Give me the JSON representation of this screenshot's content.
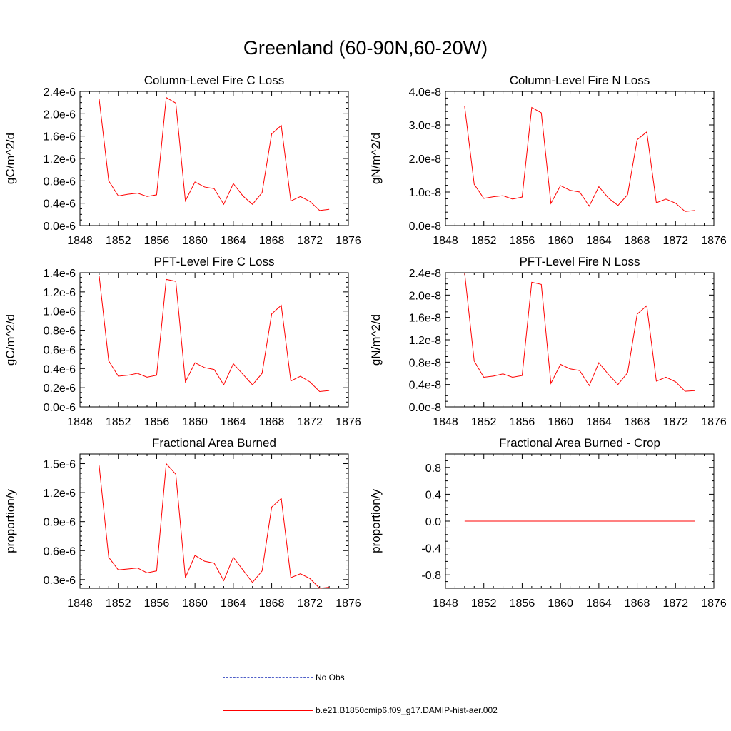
{
  "title": "Greenland (60-90N,60-20W)",
  "colors": {
    "model": "#ff0000",
    "obs": "#5060c8",
    "axis": "#000000"
  },
  "legend": {
    "obs_label": "No Obs",
    "model_label": "b.e21.B1850cmip6.f09_g17.DAMIP-hist-aer.002"
  },
  "chart_data": [
    {
      "type": "line",
      "title": "Column-Level Fire C Loss",
      "ylabel": "gC/m^2/d",
      "xlim": [
        1848,
        1876
      ],
      "x_ticks": [
        1848,
        1852,
        1856,
        1860,
        1864,
        1868,
        1872,
        1876
      ],
      "x_tick_labels": [
        "1848",
        "1852",
        "1856",
        "1860",
        "1864",
        "1868",
        "1872",
        "1876"
      ],
      "ylim": [
        0,
        2.4e-06
      ],
      "y_ticks": [
        0,
        4e-07,
        8e-07,
        1.2e-06,
        1.6e-06,
        2e-06,
        2.4e-06
      ],
      "y_tick_labels": [
        "0.0e-6",
        "0.4e-6",
        "0.8e-6",
        "1.2e-6",
        "1.6e-6",
        "2.0e-6",
        "2.4e-6"
      ],
      "y_minor_step": 1e-07,
      "x": [
        1850,
        1851,
        1852,
        1853,
        1854,
        1855,
        1856,
        1857,
        1858,
        1859,
        1860,
        1861,
        1862,
        1863,
        1864,
        1865,
        1866,
        1867,
        1868,
        1869,
        1870,
        1871,
        1872,
        1873,
        1874
      ],
      "series": [
        {
          "name": "b.e21.B1850cmip6.f09_g17.DAMIP-hist-aer.002",
          "values": [
            2.27e-06,
            8e-07,
            5.3e-07,
            5.6e-07,
            5.8e-07,
            5.2e-07,
            5.5e-07,
            2.29e-06,
            2.19e-06,
            4.4e-07,
            7.8e-07,
            6.9e-07,
            6.6e-07,
            3.8e-07,
            7.5e-07,
            5.3e-07,
            3.8e-07,
            5.9e-07,
            1.64e-06,
            1.79e-06,
            4.4e-07,
            5.2e-07,
            4.3e-07,
            2.7e-07,
            2.9e-07
          ]
        }
      ]
    },
    {
      "type": "line",
      "title": "Column-Level Fire N Loss",
      "ylabel": "gN/m^2/d",
      "xlim": [
        1848,
        1876
      ],
      "x_ticks": [
        1848,
        1852,
        1856,
        1860,
        1864,
        1868,
        1872,
        1876
      ],
      "x_tick_labels": [
        "1848",
        "1852",
        "1856",
        "1860",
        "1864",
        "1868",
        "1872",
        "1876"
      ],
      "ylim": [
        0,
        4e-08
      ],
      "y_ticks": [
        0,
        1e-08,
        2e-08,
        3e-08,
        4e-08
      ],
      "y_tick_labels": [
        "0.0e-8",
        "1.0e-8",
        "2.0e-8",
        "3.0e-8",
        "4.0e-8"
      ],
      "y_minor_step": 2e-09,
      "x": [
        1850,
        1851,
        1852,
        1853,
        1854,
        1855,
        1856,
        1857,
        1858,
        1859,
        1860,
        1861,
        1862,
        1863,
        1864,
        1865,
        1866,
        1867,
        1868,
        1869,
        1870,
        1871,
        1872,
        1873,
        1874
      ],
      "series": [
        {
          "name": "b.e21.B1850cmip6.f09_g17.DAMIP-hist-aer.002",
          "values": [
            3.56e-08,
            1.23e-08,
            8.1e-09,
            8.6e-09,
            8.9e-09,
            7.9e-09,
            8.5e-09,
            3.52e-08,
            3.36e-08,
            6.6e-09,
            1.19e-08,
            1.05e-08,
            1e-08,
            5.8e-09,
            1.16e-08,
            8.2e-09,
            6e-09,
            9.2e-09,
            2.56e-08,
            2.79e-08,
            6.8e-09,
            7.9e-09,
            6.7e-09,
            4.2e-09,
            4.5e-09
          ]
        }
      ]
    },
    {
      "type": "line",
      "title": "PFT-Level Fire C Loss",
      "ylabel": "gC/m^2/d",
      "xlim": [
        1848,
        1876
      ],
      "x_ticks": [
        1848,
        1852,
        1856,
        1860,
        1864,
        1868,
        1872,
        1876
      ],
      "x_tick_labels": [
        "1848",
        "1852",
        "1856",
        "1860",
        "1864",
        "1868",
        "1872",
        "1876"
      ],
      "ylim": [
        0,
        1.4e-06
      ],
      "y_ticks": [
        0,
        2e-07,
        4e-07,
        6e-07,
        8e-07,
        1e-06,
        1.2e-06,
        1.4e-06
      ],
      "y_tick_labels": [
        "0.0e-6",
        "0.2e-6",
        "0.4e-6",
        "0.6e-6",
        "0.8e-6",
        "1.0e-6",
        "1.2e-6",
        "1.4e-6"
      ],
      "y_minor_step": 5e-08,
      "x": [
        1850,
        1851,
        1852,
        1853,
        1854,
        1855,
        1856,
        1857,
        1858,
        1859,
        1860,
        1861,
        1862,
        1863,
        1864,
        1865,
        1866,
        1867,
        1868,
        1869,
        1870,
        1871,
        1872,
        1873,
        1874
      ],
      "series": [
        {
          "name": "b.e21.B1850cmip6.f09_g17.DAMIP-hist-aer.002",
          "values": [
            1.37e-06,
            4.8e-07,
            3.2e-07,
            3.3e-07,
            3.5e-07,
            3.1e-07,
            3.3e-07,
            1.33e-06,
            1.31e-06,
            2.6e-07,
            4.6e-07,
            4.1e-07,
            3.9e-07,
            2.3e-07,
            4.5e-07,
            3.4e-07,
            2.3e-07,
            3.5e-07,
            9.7e-07,
            1.06e-06,
            2.7e-07,
            3.2e-07,
            2.6e-07,
            1.6e-07,
            1.7e-07
          ]
        }
      ]
    },
    {
      "type": "line",
      "title": "PFT-Level Fire N Loss",
      "ylabel": "gN/m^2/d",
      "xlim": [
        1848,
        1876
      ],
      "x_ticks": [
        1848,
        1852,
        1856,
        1860,
        1864,
        1868,
        1872,
        1876
      ],
      "x_tick_labels": [
        "1848",
        "1852",
        "1856",
        "1860",
        "1864",
        "1868",
        "1872",
        "1876"
      ],
      "ylim": [
        0,
        2.4e-08
      ],
      "y_ticks": [
        0,
        4e-09,
        8e-09,
        1.2e-08,
        1.6e-08,
        2e-08,
        2.4e-08
      ],
      "y_tick_labels": [
        "0.0e-8",
        "0.4e-8",
        "0.8e-8",
        "1.2e-8",
        "1.6e-8",
        "2.0e-8",
        "2.4e-8"
      ],
      "y_minor_step": 1e-09,
      "x": [
        1850,
        1851,
        1852,
        1853,
        1854,
        1855,
        1856,
        1857,
        1858,
        1859,
        1860,
        1861,
        1862,
        1863,
        1864,
        1865,
        1866,
        1867,
        1868,
        1869,
        1870,
        1871,
        1872,
        1873,
        1874
      ],
      "series": [
        {
          "name": "b.e21.B1850cmip6.f09_g17.DAMIP-hist-aer.002",
          "values": [
            2.4e-08,
            8.2e-09,
            5.3e-09,
            5.5e-09,
            5.9e-09,
            5.3e-09,
            5.6e-09,
            2.23e-08,
            2.19e-08,
            4.2e-09,
            7.6e-09,
            6.8e-09,
            6.5e-09,
            3.8e-09,
            7.9e-09,
            5.8e-09,
            4e-09,
            6.1e-09,
            1.66e-08,
            1.81e-08,
            4.6e-09,
            5.3e-09,
            4.5e-09,
            2.8e-09,
            2.9e-09
          ]
        }
      ]
    },
    {
      "type": "line",
      "title": "Fractional Area Burned",
      "ylabel": "proportion/y",
      "xlim": [
        1848,
        1876
      ],
      "x_ticks": [
        1848,
        1852,
        1856,
        1860,
        1864,
        1868,
        1872,
        1876
      ],
      "x_tick_labels": [
        "1848",
        "1852",
        "1856",
        "1860",
        "1864",
        "1868",
        "1872",
        "1876"
      ],
      "ylim": [
        2.1e-07,
        1.6e-06
      ],
      "y_ticks": [
        3e-07,
        6e-07,
        9e-07,
        1.2e-06,
        1.5e-06
      ],
      "y_tick_labels": [
        "0.3e-6",
        "0.6e-6",
        "0.9e-6",
        "1.2e-6",
        "1.5e-6"
      ],
      "y_minor_step": 5e-08,
      "x": [
        1850,
        1851,
        1852,
        1853,
        1854,
        1855,
        1856,
        1857,
        1858,
        1859,
        1860,
        1861,
        1862,
        1863,
        1864,
        1865,
        1866,
        1867,
        1868,
        1869,
        1870,
        1871,
        1872,
        1873,
        1874
      ],
      "series": [
        {
          "name": "b.e21.B1850cmip6.f09_g17.DAMIP-hist-aer.002",
          "values": [
            1.48e-06,
            5.3e-07,
            4e-07,
            4.1e-07,
            4.2e-07,
            3.7e-07,
            3.9e-07,
            1.5e-06,
            1.39e-06,
            3.2e-07,
            5.5e-07,
            4.9e-07,
            4.7e-07,
            2.9e-07,
            5.3e-07,
            4e-07,
            2.7e-07,
            3.9e-07,
            1.05e-06,
            1.14e-06,
            3.2e-07,
            3.6e-07,
            3.1e-07,
            2.1e-07,
            2.2e-07
          ]
        }
      ]
    },
    {
      "type": "line",
      "title": "Fractional Area Burned - Crop",
      "ylabel": "proportion/y",
      "xlim": [
        1848,
        1876
      ],
      "x_ticks": [
        1848,
        1852,
        1856,
        1860,
        1864,
        1868,
        1872,
        1876
      ],
      "x_tick_labels": [
        "1848",
        "1852",
        "1856",
        "1860",
        "1864",
        "1868",
        "1872",
        "1876"
      ],
      "ylim": [
        -1.0,
        1.0
      ],
      "y_ticks": [
        -0.8,
        -0.4,
        0.0,
        0.4,
        0.8
      ],
      "y_tick_labels": [
        "-0.8",
        "-0.4",
        "0.0",
        "0.4",
        "0.8"
      ],
      "y_minor_step": 0.1,
      "x": [
        1850,
        1851,
        1852,
        1853,
        1854,
        1855,
        1856,
        1857,
        1858,
        1859,
        1860,
        1861,
        1862,
        1863,
        1864,
        1865,
        1866,
        1867,
        1868,
        1869,
        1870,
        1871,
        1872,
        1873,
        1874
      ],
      "series": [
        {
          "name": "b.e21.B1850cmip6.f09_g17.DAMIP-hist-aer.002",
          "values": [
            0,
            0,
            0,
            0,
            0,
            0,
            0,
            0,
            0,
            0,
            0,
            0,
            0,
            0,
            0,
            0,
            0,
            0,
            0,
            0,
            0,
            0,
            0,
            0,
            0
          ]
        }
      ]
    }
  ]
}
